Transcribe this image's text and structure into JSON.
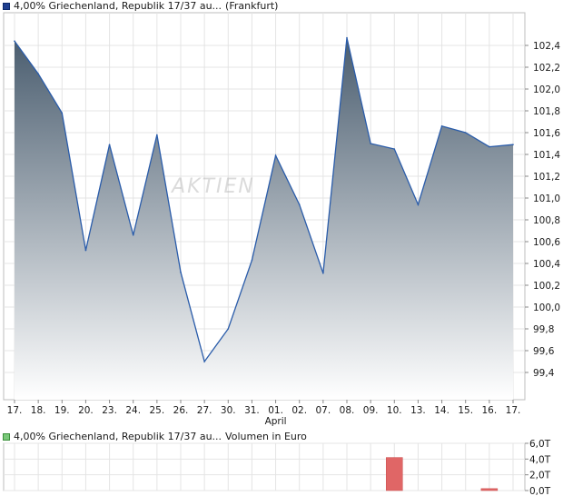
{
  "chart_data": [
    {
      "type": "area",
      "legend": "4,00% Griechenland, Republik 17/37 au...",
      "exchange": "(Frankfurt)",
      "categories": [
        "17.",
        "18.",
        "19.",
        "20.",
        "23.",
        "24.",
        "25.",
        "26.",
        "27.",
        "30.",
        "31.",
        "01.",
        "02.",
        "07.",
        "08.",
        "09.",
        "10.",
        "13.",
        "14.",
        "15.",
        "16.",
        "17."
      ],
      "month_label": "April",
      "month_label_index": 11,
      "values": [
        102.44,
        102.14,
        101.78,
        100.52,
        101.49,
        100.66,
        101.58,
        100.32,
        99.5,
        99.8,
        100.43,
        101.39,
        100.94,
        100.31,
        102.47,
        101.5,
        101.45,
        100.94,
        101.66,
        101.6,
        101.47,
        101.49
      ],
      "ylim": [
        99.15,
        102.7
      ],
      "yticks": [
        "99,4",
        "99,6",
        "99,8",
        "100,0",
        "100,2",
        "100,4",
        "100,6",
        "100,8",
        "101,0",
        "101,2",
        "101,4",
        "101,6",
        "101,8",
        "102,0",
        "102,2",
        "102,4"
      ],
      "ytick_values": [
        99.4,
        99.6,
        99.8,
        100.0,
        100.2,
        100.4,
        100.6,
        100.8,
        101.0,
        101.2,
        101.4,
        101.6,
        101.8,
        102.0,
        102.2,
        102.4
      ],
      "grid": true,
      "watermark": "AKTIEN",
      "colors": {
        "line": "#2a5caa",
        "fill_top": "#4a5d6f",
        "fill_bottom": "#ffffff",
        "grid": "#e4e4e4"
      }
    },
    {
      "type": "bar",
      "legend": "4,00% Griechenland, Republik 17/37 au...",
      "unit_label": "Volumen in Euro",
      "categories": [
        "17.",
        "18.",
        "19.",
        "20.",
        "23.",
        "24.",
        "25.",
        "26.",
        "27.",
        "30.",
        "31.",
        "01.",
        "02.",
        "07.",
        "08.",
        "09.",
        "10.",
        "13.",
        "14.",
        "15.",
        "16.",
        "17."
      ],
      "values": [
        0,
        0,
        0,
        0,
        0,
        0,
        0,
        0,
        0,
        0,
        0,
        0,
        0,
        0,
        0,
        0,
        4.2,
        0,
        0,
        0,
        0.25,
        0
      ],
      "ylim": [
        0,
        6
      ],
      "yticks": [
        "0,0T",
        "2,0T",
        "4,0T",
        "6,0T"
      ],
      "ytick_values": [
        0,
        2,
        4,
        6
      ],
      "grid": true,
      "colors": {
        "bar": "#e06666",
        "grid": "#e4e4e4"
      }
    }
  ]
}
